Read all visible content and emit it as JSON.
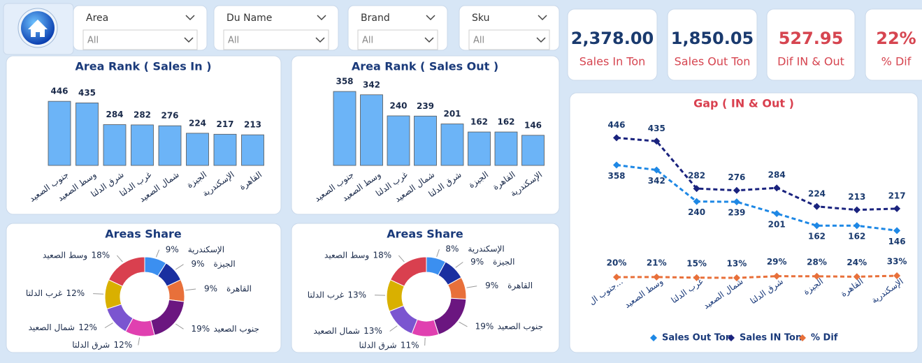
{
  "filters": [
    {
      "label": "Area",
      "value": "All"
    },
    {
      "label": "Du Name",
      "value": "All"
    },
    {
      "label": "Brand",
      "value": "All"
    },
    {
      "label": "Sku",
      "value": "All"
    }
  ],
  "kpis": [
    {
      "value": "2,378.00",
      "label": "Sales In Ton"
    },
    {
      "value": "1,850.05",
      "label": "Sales Out Ton"
    },
    {
      "value": "527.95",
      "label": "Dif IN & Out"
    },
    {
      "value": "22%",
      "label": "% Dif"
    }
  ],
  "chart_data": [
    {
      "type": "bar",
      "title": "Area Rank ( Sales In )",
      "categories": [
        "جنوب الصعيد",
        "وسط الصعيد",
        "شرق الدلتا",
        "غرب الدلتا",
        "شمال الصعيد",
        "الجيزة",
        "الإسكندرية",
        "القاهرة"
      ],
      "values": [
        446,
        435,
        284,
        282,
        276,
        224,
        217,
        213
      ],
      "color": "#6cb4f7"
    },
    {
      "type": "bar",
      "title": "Area Rank ( Sales Out )",
      "categories": [
        "جنوب الصعيد",
        "وسط الصعيد",
        "غرب الدلتا",
        "شمال الصعيد",
        "شرق الدلتا",
        "الجيزة",
        "القاهرة",
        "الإسكندرية"
      ],
      "values": [
        358,
        342,
        240,
        239,
        201,
        162,
        162,
        146
      ],
      "color": "#6cb4f7"
    },
    {
      "type": "pie",
      "title": "Areas Share",
      "donut": true,
      "categories": [
        "الإسكندرية",
        "الجيزة",
        "القاهرة",
        "جنوب الصعيد",
        "شرق الدلتا",
        "شمال الصعيد",
        "غرب الدلتا",
        "وسط الصعيد"
      ],
      "values": [
        9,
        9,
        9,
        19,
        12,
        12,
        12,
        18
      ],
      "value_labels": [
        "9%",
        "9%",
        "9%",
        "19%",
        "12%",
        "12%",
        "12%",
        "18%"
      ],
      "colors": [
        "#3b8ff0",
        "#1a2fa0",
        "#e8703a",
        "#6b1680",
        "#e040b0",
        "#7b55d0",
        "#d9b000",
        "#d9404f"
      ]
    },
    {
      "type": "pie",
      "title": "Areas Share",
      "donut": true,
      "categories": [
        "الإسكندرية",
        "الجيزة",
        "القاهرة",
        "جنوب الصعيد",
        "شرق الدلتا",
        "شمال الصعيد",
        "غرب الدلتا",
        "وسط الصعيد"
      ],
      "values": [
        8,
        9,
        9,
        19,
        11,
        13,
        13,
        18
      ],
      "value_labels": [
        "8%",
        "9%",
        "9%",
        "19%",
        "11%",
        "13%",
        "13%",
        "18%"
      ],
      "colors": [
        "#3b8ff0",
        "#1a2fa0",
        "#e8703a",
        "#6b1680",
        "#e040b0",
        "#7b55d0",
        "#d9b000",
        "#d9404f"
      ]
    },
    {
      "type": "line",
      "title": "Gap ( IN & Out )",
      "categories": [
        "جنوب ال...",
        "وسط الصعيد",
        "غرب الدلتا",
        "شمال الصعيد",
        "شرق الدلتا",
        "الجيزة",
        "القاهرة",
        "الإسكندرية"
      ],
      "series": [
        {
          "name": "Sales Out Ton",
          "color": "#1e88e5",
          "values": [
            358,
            342,
            240,
            239,
            201,
            162,
            162,
            146
          ]
        },
        {
          "name": "Sales IN Ton",
          "color": "#1a237e",
          "values": [
            446,
            435,
            282,
            276,
            284,
            224,
            213,
            217
          ]
        },
        {
          "name": "% Dif",
          "color": "#e8703a",
          "axis": "y2",
          "values": [
            20,
            21,
            15,
            13,
            29,
            28,
            24,
            33
          ],
          "value_labels": [
            "20%",
            "21%",
            "15%",
            "13%",
            "29%",
            "28%",
            "24%",
            "33%"
          ]
        }
      ],
      "legend": "bottom"
    }
  ]
}
